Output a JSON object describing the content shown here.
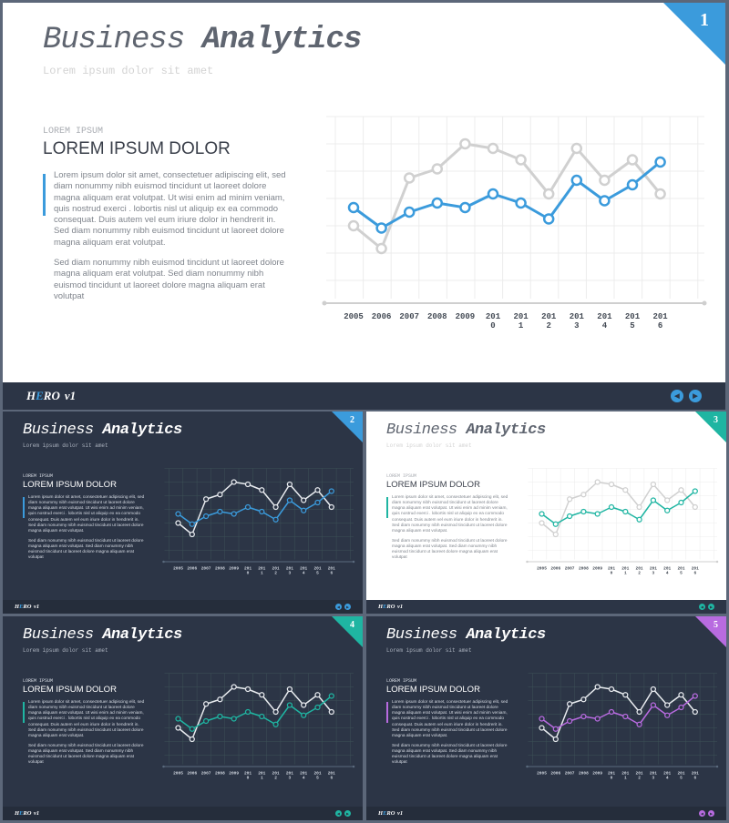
{
  "brand": {
    "logo_h": "H",
    "logo_e": "E",
    "logo_rest": "RO",
    "logo_v": "v1"
  },
  "content": {
    "title_part1": "Business",
    "title_part2": "Analytics",
    "subtitle": "Lorem ipsum dolor sit amet",
    "section_label": "LOREM IPSUM",
    "section_heading": "LOREM IPSUM DOLOR",
    "paragraph1": "Lorem ipsum dolor sit amet, consectetuer adipiscing elit, sed diam nonummy  nibh euismod tincidunt ut laoreet dolore magna aliquam erat volutpat. Ut wisi enim ad minim veniam, quis nostrud exerci . lobortis nisl ut aliquip ex ea commodo consequat. Duis autem vel eum iriure dolor in hendrerit in. Sed diam nonummy  nibh euismod tincidunt ut laoreet dolore magna aliquam erat volutpat.",
    "paragraph2": "Sed diam nonummy  nibh euismod tincidunt ut laoreet dolore magna aliquam erat volutpat. Sed diam nonummy  nibh euismod tincidunt ut laoreet dolore magna aliquam erat volutpat"
  },
  "slides": [
    {
      "number": "1",
      "theme": "light",
      "accent": "#3b9bdc",
      "nav_prev": "◀",
      "nav_next": "▶"
    },
    {
      "number": "2",
      "theme": "dark",
      "accent": "#3b9bdc",
      "nav_prev": "◀",
      "nav_next": "▶"
    },
    {
      "number": "3",
      "theme": "light",
      "accent": "#1fb5a2",
      "nav_prev": "◀",
      "nav_next": "▶"
    },
    {
      "number": "4",
      "theme": "dark",
      "accent": "#1fb5a2",
      "nav_prev": "◀",
      "nav_next": "▶"
    },
    {
      "number": "5",
      "theme": "dark",
      "accent": "#b86be0",
      "nav_prev": "◀",
      "nav_next": "▶"
    }
  ],
  "icons": {
    "prev": "chevron-left-icon",
    "next": "chevron-right-icon"
  },
  "chart_data": {
    "type": "line",
    "x_labels": [
      [
        "2005"
      ],
      [
        "2006"
      ],
      [
        "2007"
      ],
      [
        "2008"
      ],
      [
        "2009"
      ],
      [
        "201",
        "0"
      ],
      [
        "201",
        "1"
      ],
      [
        "201",
        "2"
      ],
      [
        "201",
        "3"
      ],
      [
        "201",
        "4"
      ],
      [
        "201",
        "5"
      ],
      [
        "201",
        "6"
      ]
    ],
    "series": [
      {
        "role": "secondary",
        "values": [
          32,
          22,
          53,
          57,
          68,
          66,
          61,
          46,
          66,
          52,
          61,
          46
        ]
      },
      {
        "role": "accent",
        "values": [
          40,
          31,
          38,
          42,
          40,
          46,
          42,
          35,
          52,
          43,
          50,
          60
        ]
      }
    ],
    "grid": true
  }
}
